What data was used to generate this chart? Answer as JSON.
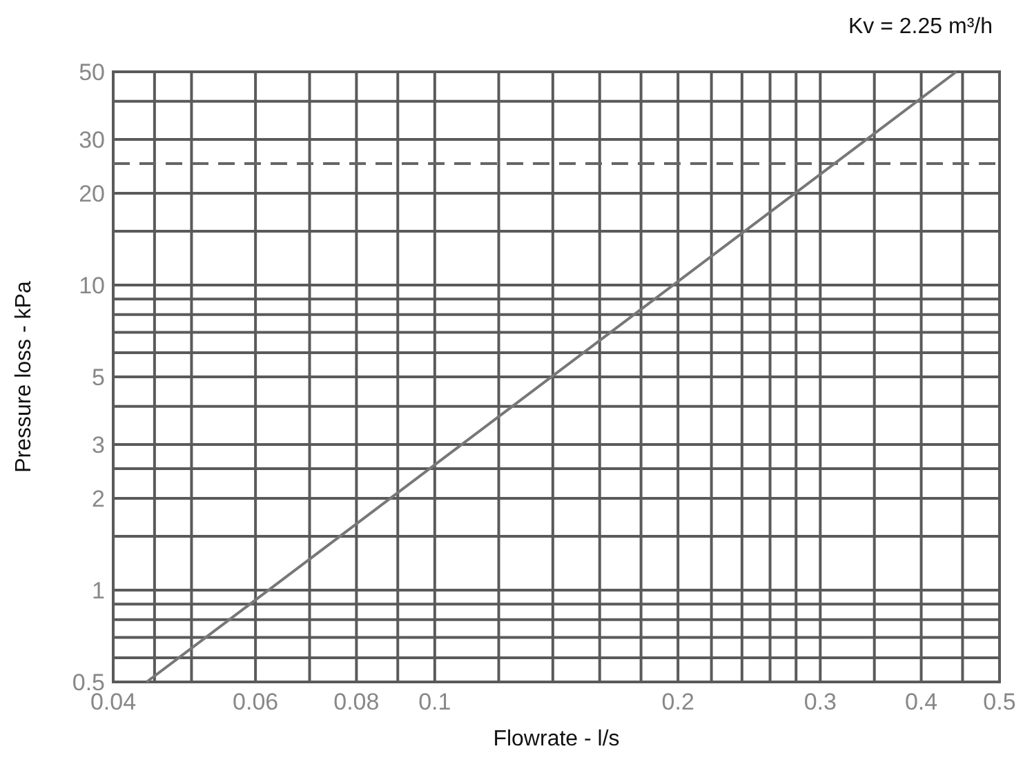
{
  "chart_data": {
    "type": "line",
    "xlabel": "Flowrate - l/s",
    "ylabel": "Pressure loss - kPa",
    "annotations": [
      "Kv = 2.25 m³/h"
    ],
    "log": "xy",
    "grid": true,
    "xlim": [
      0.04,
      0.5
    ],
    "ylim": [
      0.5,
      50
    ],
    "xticks": [
      0.04,
      {
        "value": 0.045,
        "label": null
      },
      {
        "value": 0.05,
        "label": null
      },
      0.06,
      {
        "value": 0.07,
        "label": null
      },
      0.08,
      {
        "value": 0.09,
        "label": null
      },
      0.1,
      {
        "value": 0.12,
        "label": null
      },
      {
        "value": 0.14,
        "label": null
      },
      {
        "value": 0.16,
        "label": null
      },
      {
        "value": 0.18,
        "label": null
      },
      0.2,
      {
        "value": 0.22,
        "label": null
      },
      {
        "value": 0.24,
        "label": null
      },
      {
        "value": 0.26,
        "label": null
      },
      {
        "value": 0.28,
        "label": null
      },
      0.3,
      {
        "value": 0.35,
        "label": null
      },
      0.4,
      {
        "value": 0.45,
        "label": null
      },
      0.5
    ],
    "yticks": [
      0.5,
      {
        "value": 0.6,
        "label": null
      },
      {
        "value": 0.7,
        "label": null
      },
      {
        "value": 0.8,
        "label": null
      },
      {
        "value": 0.9,
        "label": null
      },
      1,
      {
        "value": 1.5,
        "label": null
      },
      2,
      {
        "value": 2.5,
        "label": null
      },
      3,
      {
        "value": 4,
        "label": null
      },
      5,
      {
        "value": 6,
        "label": null
      },
      {
        "value": 7,
        "label": null
      },
      {
        "value": 8,
        "label": null
      },
      {
        "value": 9,
        "label": null
      },
      10,
      {
        "value": 15,
        "label": null
      },
      20,
      30,
      {
        "value": 40,
        "label": null
      },
      50
    ],
    "ref_lines": [
      {
        "axis": "y",
        "value": 25,
        "line_style": "dashed",
        "color": "#666666"
      }
    ],
    "series": [
      {
        "color": "#777777",
        "x": [
          0.044,
          0.442
        ],
        "values": [
          0.5,
          50
        ]
      }
    ]
  }
}
